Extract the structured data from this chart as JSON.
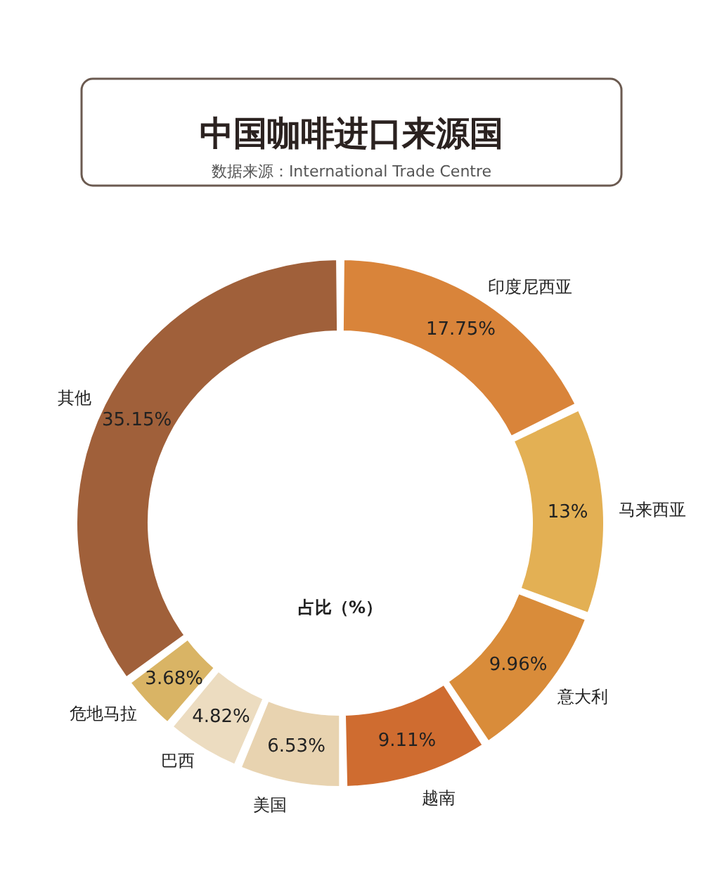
{
  "chart_data": {
    "type": "donut",
    "title": "中国咖啡进口来源国",
    "subtitle": "数据来源：International Trade Centre",
    "categories": [
      "印度尼西亚",
      "马来西亚",
      "意大利",
      "越南",
      "美国",
      "巴西",
      "危地马拉",
      "其他"
    ],
    "values": [
      17.75,
      13,
      9.96,
      9.11,
      6.53,
      4.82,
      3.68,
      35.15
    ],
    "value_labels": [
      "17.75%",
      "13%",
      "9.96%",
      "9.11%",
      "6.53%",
      "4.82%",
      "3.68%",
      "35.15%"
    ],
    "colors": [
      "#d9843a",
      "#e3b054",
      "#d98c3a",
      "#cf6c30",
      "#e8d3b0",
      "#ecdcc0",
      "#d9b465",
      "#a0603a"
    ],
    "annotations": [
      "占比（%）"
    ]
  }
}
